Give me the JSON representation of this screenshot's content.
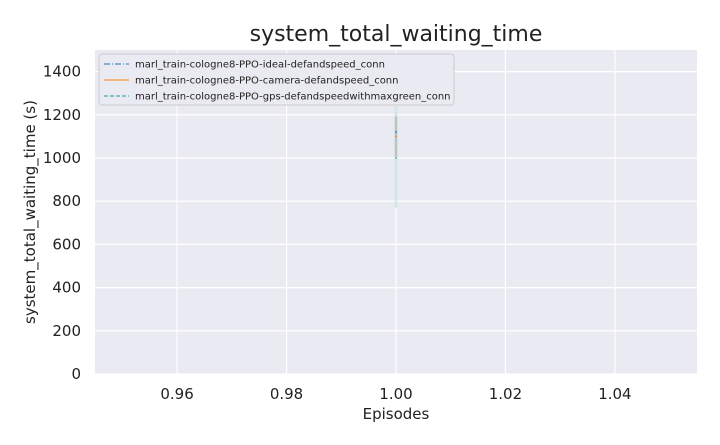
{
  "chart_data": {
    "type": "line",
    "title": "system_total_waiting_time",
    "xlabel": "Episodes",
    "ylabel": "system_total_waiting_time (s)",
    "xlim": [
      0.945,
      1.055
    ],
    "ylim": [
      0,
      1500
    ],
    "xticks": [
      "0.96",
      "0.98",
      "1.00",
      "1.02",
      "1.04"
    ],
    "xtick_values": [
      0.96,
      0.98,
      1.0,
      1.02,
      1.04
    ],
    "yticks": [
      "0",
      "200",
      "400",
      "600",
      "800",
      "1000",
      "1200",
      "1400"
    ],
    "ytick_values": [
      0,
      200,
      400,
      600,
      800,
      1000,
      1200,
      1400
    ],
    "grid": true,
    "legend_position": "top-left",
    "series": [
      {
        "name": "marl_train-cologne8-PPO-ideal-defandspeed_conn",
        "color": "#1f77b4",
        "dash": "dashdot",
        "x": [
          1.0
        ],
        "y": [
          1120
        ],
        "band": [
          1010,
          1190
        ]
      },
      {
        "name": "marl_train-cologne8-PPO-camera-defandspeed_conn",
        "color": "#ff7f0e",
        "dash": "solid",
        "x": [
          1.0
        ],
        "y": [
          1100
        ],
        "band": [
          1000,
          1200
        ]
      },
      {
        "name": "marl_train-cologne8-PPO-gps-defandspeedwithmaxgreen_conn",
        "color": "#17a2a0",
        "dash": "dashed",
        "x": [
          1.0
        ],
        "y": [
          1000
        ],
        "band": [
          770,
          1240
        ]
      }
    ]
  }
}
